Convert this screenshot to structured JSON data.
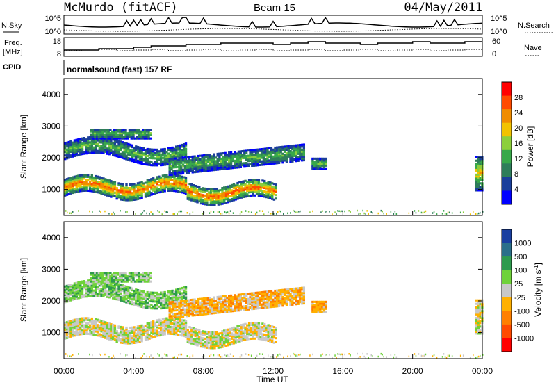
{
  "header": {
    "station": "McMurdo (fitACF)",
    "beam": "Beam 15",
    "date": "04/May/2011"
  },
  "panels": {
    "nsky": {
      "left_label": "N.Sky",
      "right_label": "N.Search",
      "left_ticks": [
        "10^5",
        "10^0"
      ],
      "right_ticks": [
        "10^5",
        "10^0"
      ]
    },
    "freq": {
      "left_label_1": "Freq.",
      "left_label_2": "[MHz]",
      "right_label": "Nave",
      "left_ticks": [
        "18",
        "8"
      ],
      "right_ticks": [
        "60",
        "0"
      ]
    },
    "cpid": {
      "label": "CPID",
      "program": "normalsound (fast) 157 RF"
    }
  },
  "colors": {
    "power_scale": [
      "#0000ff",
      "#1b3f9b",
      "#2e7d5a",
      "#38a84a",
      "#8ccf3c",
      "#f2c200",
      "#f08c00",
      "#ff4a00",
      "#ff0000"
    ],
    "velocity_scale": [
      "#1a3fa0",
      "#2b6f8a",
      "#2e9a4e",
      "#6fd23a",
      "#c8c8c8",
      "#ffb000",
      "#ff8000",
      "#ff4a00",
      "#ff0000"
    ]
  },
  "chart_data": [
    {
      "type": "heatmap",
      "title": "Power",
      "xlabel": "",
      "ylabel": "Slant Range [km]",
      "x_range_hours": [
        0,
        24
      ],
      "ylim": [
        180,
        4500
      ],
      "y_ticks": [
        1000,
        2000,
        3000,
        4000
      ],
      "colorbar_label": "Power [dB]",
      "colorbar_ticks": [
        "4",
        "8",
        "12",
        "16",
        "20",
        "24",
        "28"
      ],
      "colorbar_range": [
        0,
        32
      ]
    },
    {
      "type": "heatmap",
      "title": "Velocity",
      "xlabel": "Time UT",
      "ylabel": "Slant Range [km]",
      "x_range_hours": [
        0,
        24
      ],
      "ylim": [
        180,
        4500
      ],
      "y_ticks": [
        1000,
        2000,
        3000,
        4000
      ],
      "x_ticks": [
        "00:00",
        "04:00",
        "08:00",
        "12:00",
        "16:00",
        "20:00",
        "00:00"
      ],
      "colorbar_label": "Velocity [m s",
      "colorbar_superscript": "-1",
      "colorbar_close": "]",
      "colorbar_ticks": [
        "1000",
        "500",
        "100",
        "25",
        "-25",
        "-100",
        "-500",
        "-1000"
      ]
    }
  ]
}
